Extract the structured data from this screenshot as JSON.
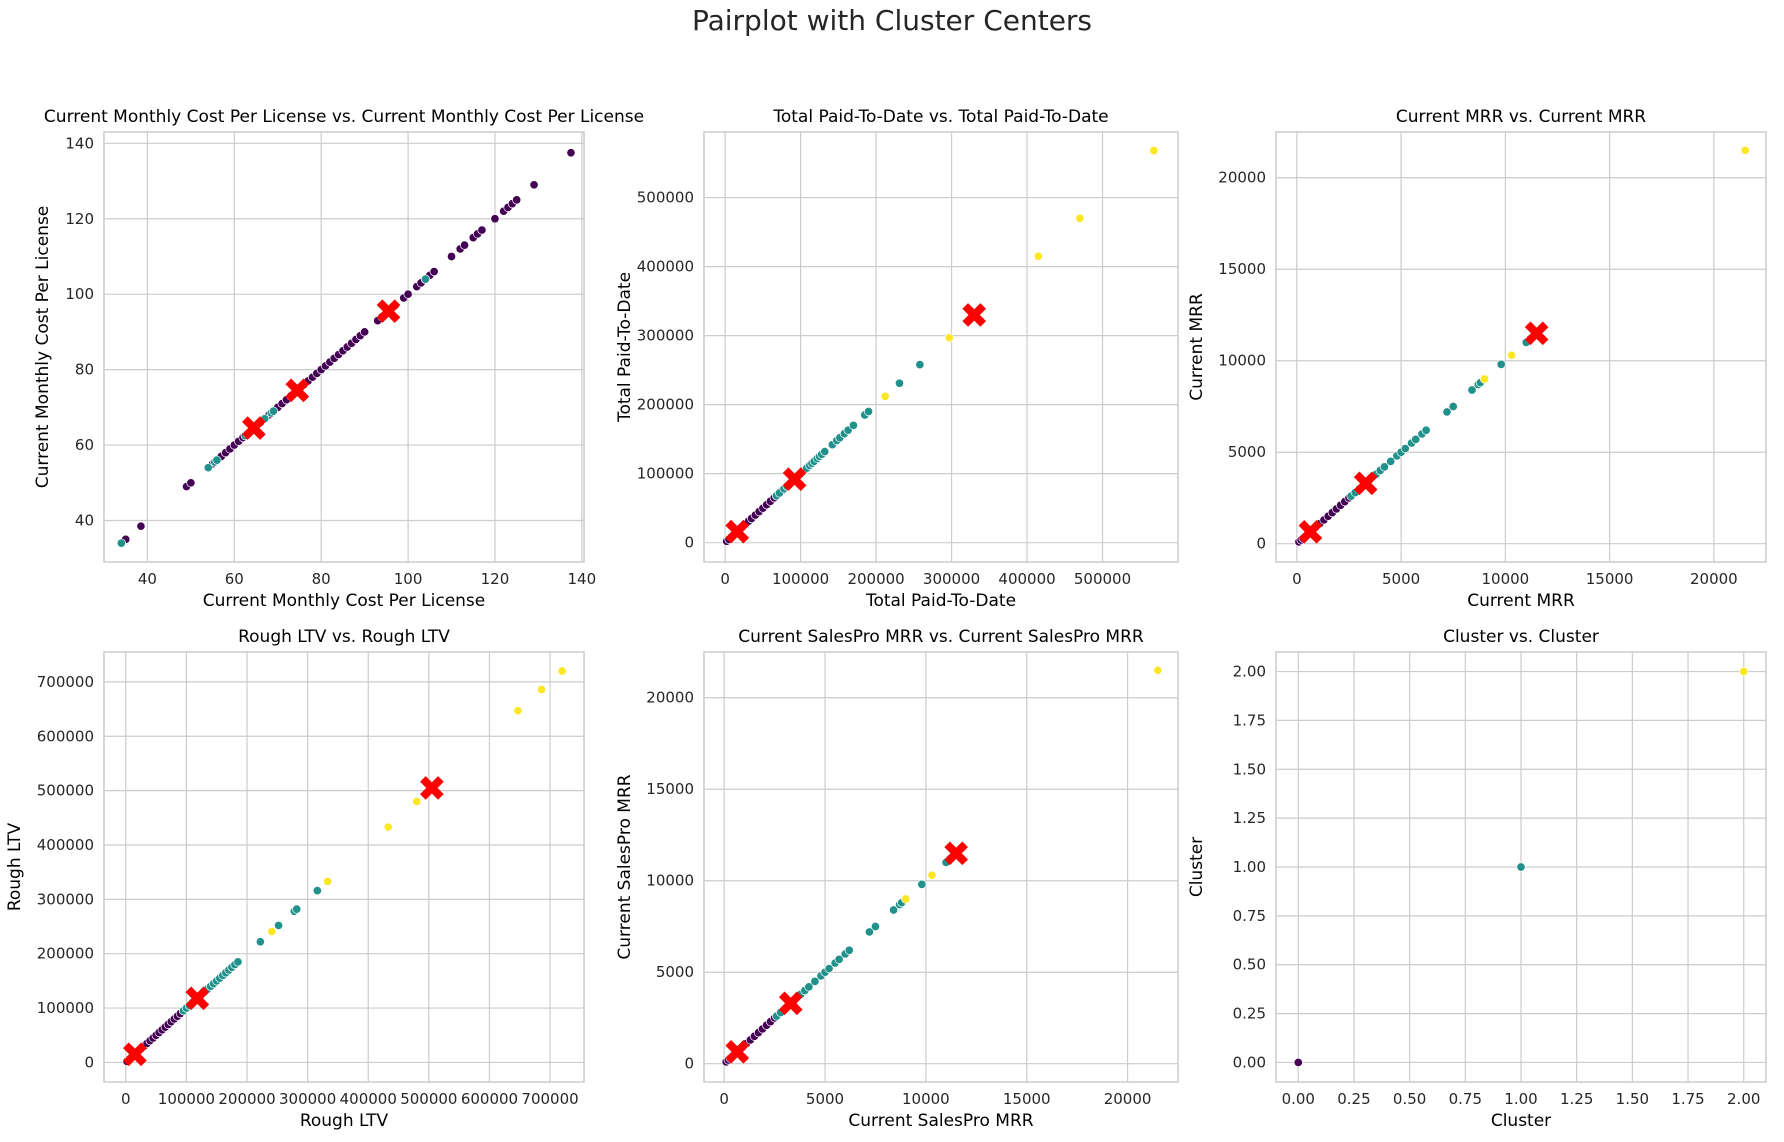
{
  "figure_title": "Pairplot with Cluster Centers",
  "cluster_colors": [
    "#440154",
    "#21918c",
    "#fde725"
  ],
  "center_marker_color": "#ff0000",
  "chart_data": [
    {
      "type": "scatter",
      "title": "Current Monthly Cost Per License vs. Current Monthly Cost Per License",
      "xlabel": "Current Monthly Cost Per License",
      "ylabel": "Current Monthly Cost Per License",
      "xlim": [
        30,
        140.5
      ],
      "ylim": [
        29,
        143
      ],
      "xticks": [
        40,
        60,
        80,
        100,
        120,
        140
      ],
      "yticks": [
        40,
        60,
        80,
        100,
        120,
        140
      ],
      "grid": true,
      "points": {
        "cluster_0": [
          35,
          38.5,
          49,
          50,
          55,
          57,
          58,
          59,
          60,
          61,
          62,
          66,
          68,
          69,
          70,
          71,
          72,
          73,
          74,
          75,
          76,
          77,
          78,
          79,
          80,
          81,
          82,
          83,
          84,
          85,
          86,
          87,
          88,
          89,
          90,
          93,
          94,
          95,
          96,
          97,
          99,
          100,
          102,
          103,
          104,
          105,
          106,
          110,
          112,
          113,
          115,
          116,
          117,
          120,
          122,
          123,
          124,
          125,
          129,
          137.5
        ],
        "cluster_1": [
          34,
          54,
          55.5,
          56,
          62.5,
          63,
          63.5,
          64,
          67,
          68.5,
          69,
          104
        ],
        "cluster_2": []
      },
      "centers": [
        64.5,
        74.5,
        95.5
      ]
    },
    {
      "type": "scatter",
      "title": "Total Paid-To-Date vs. Total Paid-To-Date",
      "xlabel": "Total Paid-To-Date",
      "ylabel": "Total Paid-To-Date",
      "xlim": [
        -28000,
        600000
      ],
      "ylim": [
        -28000,
        595000
      ],
      "xticks": [
        0,
        100000,
        200000,
        300000,
        400000,
        500000
      ],
      "yticks": [
        0,
        100000,
        200000,
        300000,
        400000,
        500000
      ],
      "grid": true,
      "points": {
        "cluster_0": [
          2000,
          5000,
          8000,
          11000,
          15000,
          19000,
          23000,
          27000,
          31000,
          35000,
          40000,
          45000,
          50000,
          55000,
          60000,
          65000,
          70000,
          75000,
          80000,
          85000,
          90000
        ],
        "cluster_1": [
          68000,
          72000,
          78000,
          82000,
          88000,
          95000,
          100000,
          105000,
          108000,
          112000,
          115000,
          118000,
          122000,
          125000,
          128000,
          132000,
          142000,
          148000,
          152000,
          158000,
          163000,
          170000,
          185000,
          190000,
          231000,
          258000
        ],
        "cluster_2": [
          212000,
          297000,
          415000,
          470000,
          568000
        ]
      },
      "centers": [
        16000,
        92000,
        330000
      ]
    },
    {
      "type": "scatter",
      "title": "Current MRR vs. Current MRR",
      "xlabel": "Current MRR",
      "ylabel": "Current MRR",
      "xlim": [
        -1000,
        22500
      ],
      "ylim": [
        -1000,
        22500
      ],
      "xticks": [
        0,
        5000,
        10000,
        15000,
        20000
      ],
      "yticks": [
        0,
        5000,
        10000,
        15000,
        20000
      ],
      "grid": true,
      "points": {
        "cluster_0": [
          100,
          200,
          300,
          400,
          500,
          700,
          900,
          1100,
          1300,
          1500,
          1700,
          1900,
          2100,
          2300,
          2500
        ],
        "cluster_1": [
          2600,
          2800,
          3000,
          3200,
          3500,
          3800,
          4000,
          4200,
          4500,
          4800,
          5000,
          5200,
          5500,
          5700,
          6000,
          6200,
          7200,
          7500,
          8400,
          8700,
          8800,
          9800,
          11000,
          11200
        ],
        "cluster_2": [
          9000,
          10300,
          21500
        ]
      },
      "centers": [
        650,
        3300,
        11500
      ]
    },
    {
      "type": "scatter",
      "title": "Rough LTV vs. Rough LTV",
      "xlabel": "Rough LTV",
      "ylabel": "Rough LTV",
      "xlim": [
        -36000,
        756000
      ],
      "ylim": [
        -36000,
        755000
      ],
      "xticks": [
        0,
        100000,
        200000,
        300000,
        400000,
        500000,
        600000,
        700000
      ],
      "yticks": [
        0,
        100000,
        200000,
        300000,
        400000,
        500000,
        600000,
        700000
      ],
      "grid": true,
      "points": {
        "cluster_0": [
          2000,
          6000,
          10000,
          15000,
          20000,
          25000,
          30000,
          35000,
          40000,
          45000,
          50000,
          55000,
          60000,
          65000,
          70000,
          75000,
          80000,
          85000,
          90000
        ],
        "cluster_1": [
          95000,
          100000,
          105000,
          110000,
          120000,
          125000,
          130000,
          135000,
          140000,
          145000,
          150000,
          155000,
          160000,
          165000,
          170000,
          175000,
          180000,
          185000,
          222000,
          252000,
          278000,
          282000,
          316000
        ],
        "cluster_2": [
          241000,
          333000,
          433000,
          480000,
          647000,
          686000,
          720000
        ]
      },
      "centers": [
        15000,
        118000,
        505000
      ]
    },
    {
      "type": "scatter",
      "title": "Current SalesPro MRR vs. Current SalesPro MRR",
      "xlabel": "Current SalesPro MRR",
      "ylabel": "Current SalesPro MRR",
      "xlim": [
        -1000,
        22500
      ],
      "ylim": [
        -1000,
        22500
      ],
      "xticks": [
        0,
        5000,
        10000,
        15000,
        20000
      ],
      "yticks": [
        0,
        5000,
        10000,
        15000,
        20000
      ],
      "grid": true,
      "points": {
        "cluster_0": [
          100,
          200,
          300,
          400,
          500,
          700,
          900,
          1100,
          1300,
          1500,
          1700,
          1900,
          2100,
          2300,
          2500
        ],
        "cluster_1": [
          2600,
          2800,
          3000,
          3200,
          3500,
          3800,
          4000,
          4200,
          4500,
          4800,
          5000,
          5200,
          5500,
          5700,
          6000,
          6200,
          7200,
          7500,
          8400,
          8700,
          8800,
          9800,
          11000,
          11200
        ],
        "cluster_2": [
          9000,
          10300,
          21500
        ]
      },
      "centers": [
        650,
        3300,
        11500
      ]
    },
    {
      "type": "scatter",
      "title": "Cluster vs. Cluster",
      "xlabel": "Cluster",
      "ylabel": "Cluster",
      "xlim": [
        -0.1,
        2.1
      ],
      "ylim": [
        -0.1,
        2.1
      ],
      "xticks": [
        0.0,
        0.25,
        0.5,
        0.75,
        1.0,
        1.25,
        1.5,
        1.75,
        2.0
      ],
      "yticks": [
        0.0,
        0.25,
        0.5,
        0.75,
        1.0,
        1.25,
        1.5,
        1.75,
        2.0
      ],
      "tick_decimals": 2,
      "grid": true,
      "points": {
        "cluster_0": [
          0
        ],
        "cluster_1": [
          1
        ],
        "cluster_2": [
          2
        ]
      },
      "centers": []
    }
  ]
}
